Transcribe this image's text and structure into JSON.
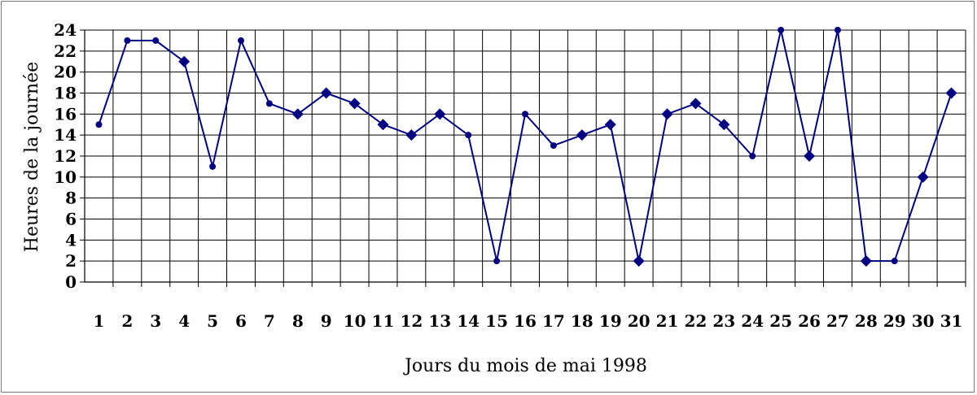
{
  "chart_data": {
    "type": "line",
    "xlabel": "Jours du mois de mai 1998",
    "ylabel": "Heures de la journée",
    "ylim": [
      0,
      24
    ],
    "ytick_step": 2,
    "yticks": [
      "0",
      "2",
      "4",
      "6",
      "8",
      "10",
      "12",
      "14",
      "16",
      "18",
      "20",
      "22",
      "24"
    ],
    "categories": [
      "1",
      "2",
      "3",
      "4",
      "5",
      "6",
      "7",
      "8",
      "9",
      "10",
      "11",
      "12",
      "13",
      "14",
      "15",
      "16",
      "17",
      "18",
      "19",
      "20",
      "21",
      "22",
      "23",
      "24",
      "25",
      "26",
      "27",
      "28",
      "29",
      "30",
      "31"
    ],
    "grid": true,
    "legend": "none",
    "series": [
      {
        "values": [
          15,
          23,
          23,
          21,
          11,
          23,
          17,
          16,
          18,
          17,
          15,
          14,
          16,
          14,
          2,
          16,
          13,
          14,
          15,
          2,
          16,
          17,
          15,
          12,
          24,
          12,
          24,
          2,
          2,
          10,
          18
        ],
        "markers": [
          "circle",
          "circle",
          "circle",
          "diamond",
          "circle",
          "circle",
          "circle",
          "diamond",
          "diamond",
          "diamond",
          "diamond",
          "diamond",
          "diamond",
          "circle",
          "circle",
          "circle",
          "circle",
          "diamond",
          "diamond",
          "diamond",
          "diamond",
          "diamond",
          "diamond",
          "circle",
          "circle",
          "diamond",
          "circle",
          "diamond",
          "circle",
          "diamond",
          "diamond"
        ],
        "color": "#000080"
      }
    ]
  }
}
